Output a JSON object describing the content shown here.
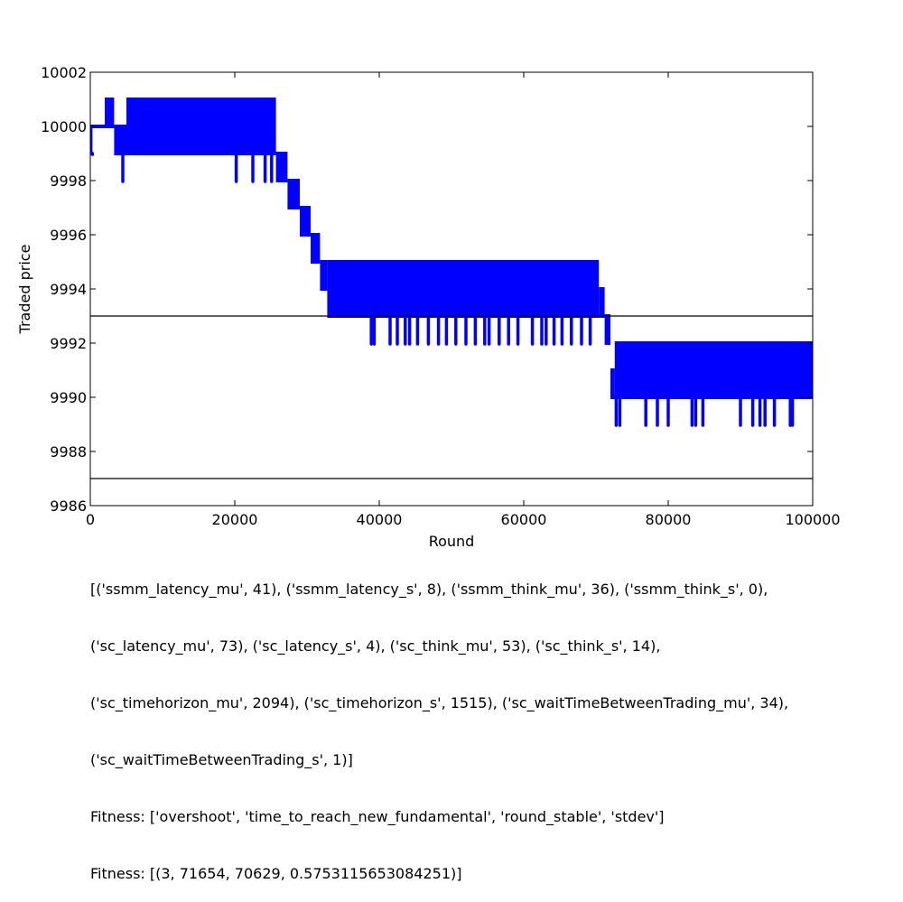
{
  "chart_data": {
    "type": "line",
    "xlabel": "Round",
    "ylabel": "Traded price",
    "xlim": [
      0,
      100000
    ],
    "ylim": [
      9986,
      10002
    ],
    "x_ticks": [
      0,
      20000,
      40000,
      60000,
      80000,
      100000
    ],
    "y_ticks": [
      9986,
      9988,
      9990,
      9992,
      9994,
      9996,
      9998,
      10000,
      10002
    ],
    "grid": false,
    "hlines": [
      9993,
      9987
    ],
    "series": [
      {
        "color": "#0000ff",
        "segments": [
          {
            "x": [
              0,
              300
            ],
            "low": 9999,
            "high": 10000
          },
          {
            "x": [
              300,
              2000
            ],
            "low": 10000,
            "high": 10000
          },
          {
            "x": [
              2000,
              3300
            ],
            "low": 10000,
            "high": 10001
          },
          {
            "x": [
              3300,
              5000
            ],
            "low": 9999,
            "high": 10000
          },
          {
            "x": [
              5000,
              25700
            ],
            "low": 9999,
            "high": 10001
          },
          {
            "x": [
              25700,
              27300
            ],
            "low": 9998,
            "high": 9999
          },
          {
            "x": [
              27300,
              29000
            ],
            "low": 9997,
            "high": 9998
          },
          {
            "x": [
              29000,
              30500
            ],
            "low": 9996,
            "high": 9997
          },
          {
            "x": [
              30500,
              31800
            ],
            "low": 9995,
            "high": 9996
          },
          {
            "x": [
              31800,
              32800
            ],
            "low": 9994,
            "high": 9995
          },
          {
            "x": [
              32800,
              70400
            ],
            "low": 9993,
            "high": 9995
          },
          {
            "x": [
              70400,
              71200
            ],
            "low": 9993,
            "high": 9994
          },
          {
            "x": [
              71200,
              72000
            ],
            "low": 9992,
            "high": 9993
          },
          {
            "x": [
              72000,
              72600
            ],
            "low": 9990,
            "high": 9991
          },
          {
            "x": [
              72600,
              100000
            ],
            "low": 9990,
            "high": 9992
          }
        ],
        "spikes": [
          {
            "x": 300,
            "y": 9999
          },
          {
            "x": 4500,
            "y": 9998
          },
          {
            "x": 20200,
            "y": 9998
          },
          {
            "x": 22500,
            "y": 9998
          },
          {
            "x": 24200,
            "y": 9998
          },
          {
            "x": 25100,
            "y": 9998
          },
          {
            "x": 38900,
            "y": 9992
          },
          {
            "x": 39300,
            "y": 9992
          },
          {
            "x": 41500,
            "y": 9992
          },
          {
            "x": 42500,
            "y": 9992
          },
          {
            "x": 43600,
            "y": 9992
          },
          {
            "x": 44200,
            "y": 9992
          },
          {
            "x": 45300,
            "y": 9992
          },
          {
            "x": 46800,
            "y": 9992
          },
          {
            "x": 48200,
            "y": 9992
          },
          {
            "x": 49300,
            "y": 9992
          },
          {
            "x": 50600,
            "y": 9992
          },
          {
            "x": 52000,
            "y": 9992
          },
          {
            "x": 53300,
            "y": 9992
          },
          {
            "x": 54600,
            "y": 9992
          },
          {
            "x": 55200,
            "y": 9992
          },
          {
            "x": 56600,
            "y": 9992
          },
          {
            "x": 57900,
            "y": 9992
          },
          {
            "x": 59200,
            "y": 9992
          },
          {
            "x": 61200,
            "y": 9992
          },
          {
            "x": 62500,
            "y": 9992
          },
          {
            "x": 63100,
            "y": 9992
          },
          {
            "x": 64200,
            "y": 9992
          },
          {
            "x": 65300,
            "y": 9992
          },
          {
            "x": 66600,
            "y": 9992
          },
          {
            "x": 68000,
            "y": 9992
          },
          {
            "x": 69200,
            "y": 9992
          },
          {
            "x": 72800,
            "y": 9989
          },
          {
            "x": 73300,
            "y": 9989
          },
          {
            "x": 76900,
            "y": 9989
          },
          {
            "x": 78500,
            "y": 9989
          },
          {
            "x": 80000,
            "y": 9989
          },
          {
            "x": 83300,
            "y": 9989
          },
          {
            "x": 83800,
            "y": 9989
          },
          {
            "x": 84800,
            "y": 9989
          },
          {
            "x": 90000,
            "y": 9989
          },
          {
            "x": 91700,
            "y": 9989
          },
          {
            "x": 92700,
            "y": 9989
          },
          {
            "x": 93400,
            "y": 9989
          },
          {
            "x": 94700,
            "y": 9989
          },
          {
            "x": 96900,
            "y": 9989
          },
          {
            "x": 97200,
            "y": 9989
          }
        ]
      }
    ]
  },
  "caption": {
    "lines": [
      "[('ssmm_latency_mu', 41), ('ssmm_latency_s', 8), ('ssmm_think_mu', 36), ('ssmm_think_s', 0),",
      "('sc_latency_mu', 73), ('sc_latency_s', 4), ('sc_think_mu', 53), ('sc_think_s', 14),",
      "('sc_timehorizon_mu', 2094), ('sc_timehorizon_s', 1515), ('sc_waitTimeBetweenTrading_mu', 34),",
      "('sc_waitTimeBetweenTrading_s', 1)]",
      "Fitness: ['overshoot', 'time_to_reach_new_fundamental', 'round_stable', 'stdev']",
      "Fitness: [(3, 71654, 70629, 0.5753115653084251)]"
    ]
  }
}
